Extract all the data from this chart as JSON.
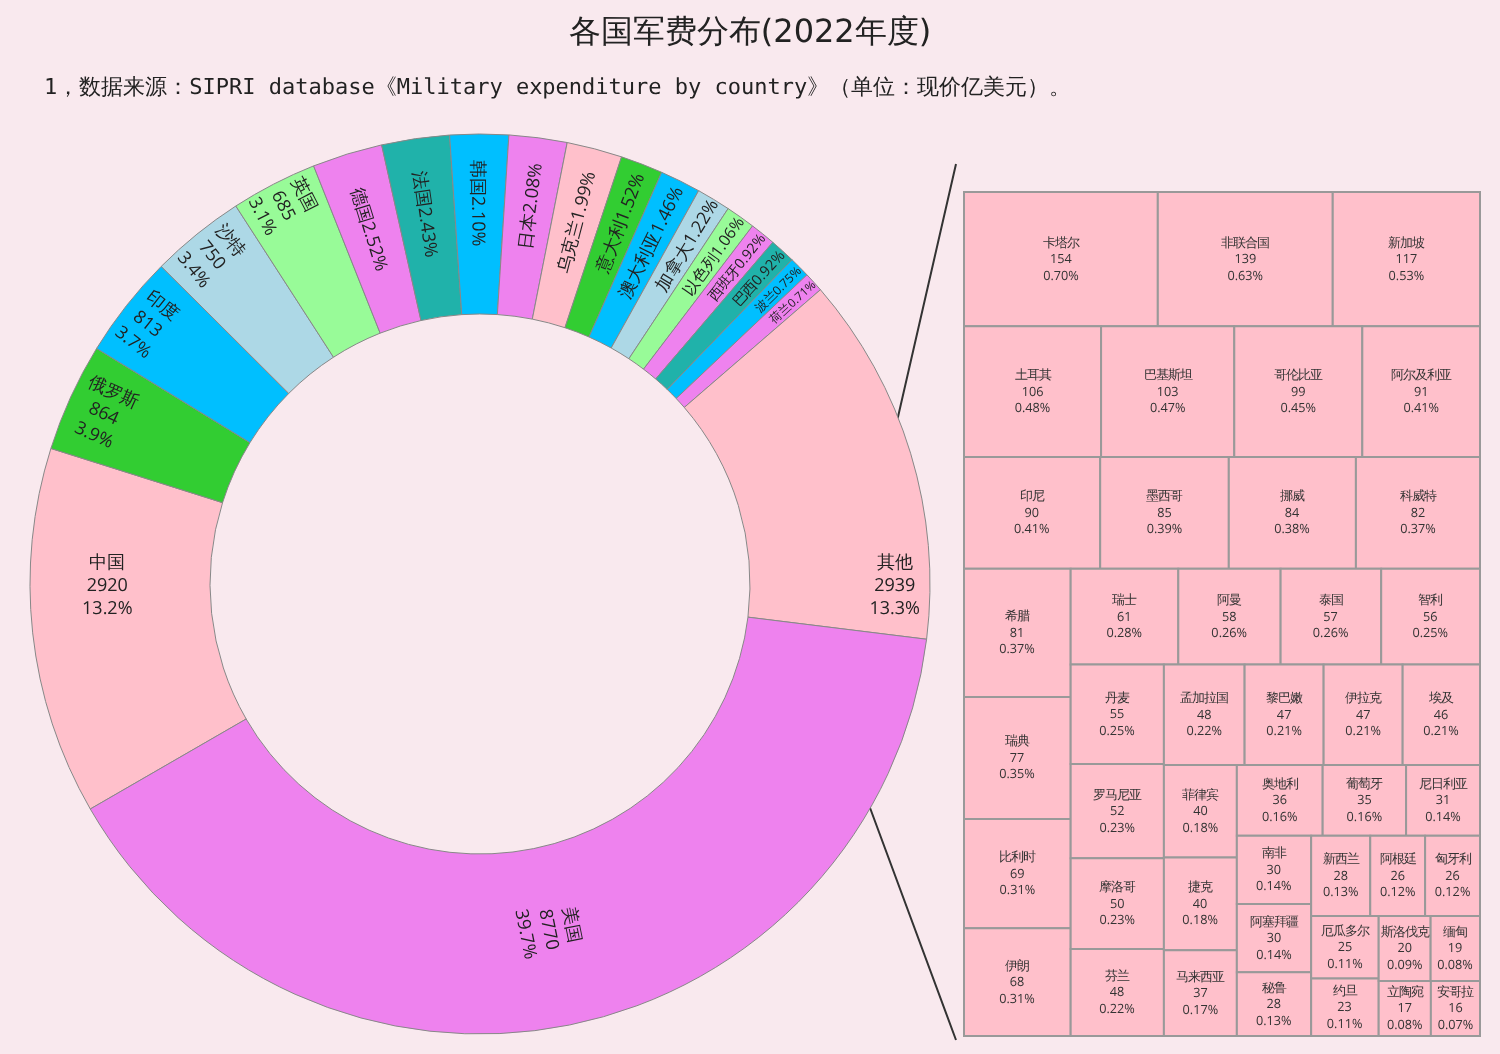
{
  "chart_data": [
    {
      "type": "donut",
      "title": "各国军费分布(2022年度)",
      "annotations": [
        "1，数据来源：SIPRI database《Military expenditure by country》（单位：现价亿美元）。"
      ],
      "categories": [
        "中国",
        "俄罗斯",
        "印度",
        "沙特",
        "英国",
        "德国",
        "法国",
        "韩国",
        "日本",
        "乌克兰",
        "意大利",
        "澳大利亚",
        "加拿大",
        "以色列",
        "西班牙",
        "巴西",
        "波兰",
        "荷兰",
        "其他",
        "美国"
      ],
      "values": [
        13.2,
        3.9,
        3.7,
        3.4,
        3.1,
        2.52,
        2.43,
        2.1,
        2.08,
        1.99,
        1.52,
        1.46,
        1.22,
        1.06,
        0.92,
        0.92,
        0.75,
        0.71,
        13.3,
        39.7
      ],
      "value_labels": [
        "2920\n13.2%",
        "864\n3.9%",
        "813\n3.7%",
        "750\n3.4%",
        "685\n3.1%",
        "2.52%",
        "2.43%",
        "2.10%",
        "2.08%",
        "1.99%",
        "1.52%",
        "1.46%",
        "1.22%",
        "1.06%",
        "0.92%",
        "0.92%",
        "0.75%",
        "0.71%",
        "2939\n13.3%",
        "8770\n39.7%"
      ],
      "colors": [
        "#ffc0cb",
        "#32cd32",
        "#00bfff",
        "#add8e6",
        "#98fb98",
        "#ee82ee",
        "#20b2aa",
        "#00bfff",
        "#ee82ee",
        "#ffc0cb",
        "#32cd32",
        "#00bfff",
        "#add8e6",
        "#98fb98",
        "#ee82ee",
        "#20b2aa",
        "#00bfff",
        "#ee82ee",
        "#ffc0cb",
        "#ee82ee"
      ]
    },
    {
      "type": "other",
      "color": "#ffc0cb",
      "categories": [
        "卡塔尔",
        "非联合国",
        "新加坡",
        "土耳其",
        "巴基斯坦",
        "哥伦比亚",
        "阿尔及利亚",
        "印尼",
        "墨西哥",
        "挪威",
        "科威特",
        "希腊",
        "瑞典",
        "比利时",
        "伊朗",
        "瑞士",
        "阿曼",
        "泰国",
        "智利",
        "丹麦",
        "罗马尼亚",
        "摩洛哥",
        "芬兰",
        "孟加拉国",
        "黎巴嫩",
        "伊拉克",
        "埃及",
        "菲律宾",
        "捷克",
        "马来西亚",
        "奥地利",
        "葡萄牙",
        "尼日利亚",
        "南非",
        "阿塞拜疆",
        "秘鲁",
        "新西兰",
        "阿根廷",
        "匈牙利",
        "厄瓜多尔",
        "约旦",
        "斯洛伐克",
        "缅甸",
        "立陶宛",
        "安哥拉"
      ],
      "values": [
        154,
        139,
        117,
        106,
        103,
        99,
        91,
        90,
        85,
        84,
        82,
        81,
        77,
        69,
        68,
        61,
        58,
        57,
        56,
        55,
        52,
        50,
        48,
        48,
        47,
        47,
        46,
        40,
        40,
        37,
        36,
        35,
        31,
        30,
        30,
        28,
        28,
        26,
        26,
        25,
        23,
        20,
        19,
        17,
        16
      ],
      "value_labels": [
        "154\n0.70%",
        "139\n0.63%",
        "117\n0.53%",
        "106\n0.48%",
        "103\n0.47%",
        "99\n0.45%",
        "91\n0.41%",
        "90\n0.41%",
        "85\n0.39%",
        "84\n0.38%",
        "82\n0.37%",
        "81\n0.37%",
        "77\n0.35%",
        "69\n0.31%",
        "68\n0.31%",
        "61\n0.28%",
        "58\n0.26%",
        "57\n0.26%",
        "56\n0.25%",
        "55\n0.25%",
        "52\n0.23%",
        "50\n0.23%",
        "48\n0.22%",
        "48\n0.22%",
        "47\n0.21%",
        "47\n0.21%",
        "46\n0.21%",
        "40\n0.18%",
        "40\n0.18%",
        "37\n0.17%",
        "36\n0.16%",
        "35\n0.16%",
        "31\n0.14%",
        "30\n0.14%",
        "30\n0.14%",
        "28\n0.13%",
        "28\n0.13%",
        "26\n0.12%",
        "26\n0.12%",
        "25\n0.11%",
        "23\n0.11%",
        "20\n0.09%",
        "19\n0.08%",
        "17\n0.08%",
        "16\n0.07%"
      ]
    }
  ]
}
